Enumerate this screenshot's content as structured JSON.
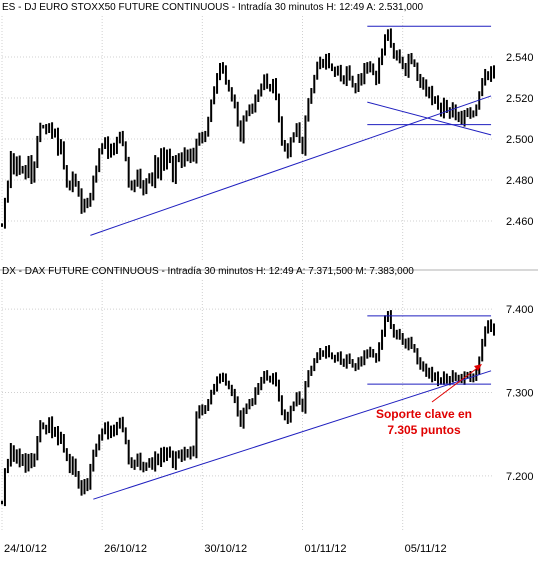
{
  "chart_data": [
    {
      "type": "line",
      "subtype": "bar-ohlc",
      "title": "ES - DJ EURO STOXX50 FUTURE CONTINUOUS - Intradía 30 minutos  H: 12:49  A: 2.531,000",
      "yticks": [
        2.46,
        2.48,
        2.5,
        2.52,
        2.54
      ],
      "ytick_labels": [
        "2.460",
        "2.480",
        "2.500",
        "2.520",
        "2.540"
      ],
      "ylim": [
        2.44,
        2.56
      ],
      "grid": true,
      "price_path": [
        [
          0,
          2.458
        ],
        [
          1,
          2.47
        ],
        [
          2,
          2.478
        ],
        [
          3,
          2.492
        ],
        [
          4,
          2.484
        ],
        [
          5,
          2.49
        ],
        [
          6,
          2.484
        ],
        [
          7,
          2.486
        ],
        [
          8,
          2.482
        ],
        [
          9,
          2.49
        ],
        [
          10,
          2.48
        ],
        [
          11,
          2.488
        ],
        [
          12,
          2.5
        ],
        [
          13,
          2.506
        ],
        [
          14,
          2.506
        ],
        [
          15,
          2.504
        ],
        [
          16,
          2.506
        ],
        [
          17,
          2.502
        ],
        [
          18,
          2.504
        ],
        [
          19,
          2.494
        ],
        [
          20,
          2.498
        ],
        [
          21,
          2.486
        ],
        [
          22,
          2.478
        ],
        [
          23,
          2.476
        ],
        [
          24,
          2.482
        ],
        [
          25,
          2.478
        ],
        [
          26,
          2.474
        ],
        [
          27,
          2.465
        ],
        [
          28,
          2.47
        ],
        [
          29,
          2.468
        ],
        [
          30,
          2.472
        ],
        [
          31,
          2.48
        ],
        [
          32,
          2.486
        ],
        [
          33,
          2.494
        ],
        [
          34,
          2.496
        ],
        [
          35,
          2.5
        ],
        [
          36,
          2.492
        ],
        [
          37,
          2.496
        ],
        [
          38,
          2.494
        ],
        [
          39,
          2.5
        ],
        [
          40,
          2.502
        ],
        [
          41,
          2.498
        ],
        [
          42,
          2.49
        ],
        [
          43,
          2.478
        ],
        [
          44,
          2.476
        ],
        [
          45,
          2.478
        ],
        [
          46,
          2.484
        ],
        [
          47,
          2.478
        ],
        [
          48,
          2.474
        ],
        [
          49,
          2.48
        ],
        [
          50,
          2.482
        ],
        [
          51,
          2.478
        ],
        [
          52,
          2.49
        ],
        [
          53,
          2.482
        ],
        [
          54,
          2.494
        ],
        [
          55,
          2.486
        ],
        [
          56,
          2.494
        ],
        [
          57,
          2.49
        ],
        [
          58,
          2.48
        ],
        [
          59,
          2.49
        ],
        [
          60,
          2.492
        ],
        [
          61,
          2.488
        ],
        [
          62,
          2.494
        ],
        [
          63,
          2.49
        ],
        [
          64,
          2.494
        ],
        [
          65,
          2.49
        ],
        [
          66,
          2.498
        ],
        [
          67,
          2.502
        ],
        [
          68,
          2.5
        ],
        [
          69,
          2.502
        ],
        [
          70,
          2.51
        ],
        [
          71,
          2.518
        ],
        [
          72,
          2.524
        ],
        [
          73,
          2.53
        ],
        [
          74,
          2.536
        ],
        [
          75,
          2.534
        ],
        [
          76,
          2.528
        ],
        [
          77,
          2.524
        ],
        [
          78,
          2.52
        ],
        [
          79,
          2.516
        ],
        [
          80,
          2.508
        ],
        [
          81,
          2.5
        ],
        [
          82,
          2.51
        ],
        [
          83,
          2.512
        ],
        [
          84,
          2.516
        ],
        [
          85,
          2.514
        ],
        [
          86,
          2.52
        ],
        [
          87,
          2.522
        ],
        [
          88,
          2.526
        ],
        [
          89,
          2.53
        ],
        [
          90,
          2.526
        ],
        [
          91,
          2.524
        ],
        [
          92,
          2.528
        ],
        [
          93,
          2.52
        ],
        [
          94,
          2.51
        ],
        [
          95,
          2.498
        ],
        [
          96,
          2.496
        ],
        [
          97,
          2.492
        ],
        [
          98,
          2.5
        ],
        [
          99,
          2.502
        ],
        [
          100,
          2.506
        ],
        [
          101,
          2.5
        ],
        [
          102,
          2.494
        ],
        [
          103,
          2.51
        ],
        [
          104,
          2.518
        ],
        [
          105,
          2.524
        ],
        [
          106,
          2.53
        ],
        [
          107,
          2.536
        ],
        [
          108,
          2.538
        ],
        [
          109,
          2.536
        ],
        [
          110,
          2.54
        ],
        [
          111,
          2.536
        ],
        [
          112,
          2.534
        ],
        [
          113,
          2.532
        ],
        [
          114,
          2.534
        ],
        [
          115,
          2.53
        ],
        [
          116,
          2.528
        ],
        [
          117,
          2.534
        ],
        [
          118,
          2.53
        ],
        [
          119,
          2.526
        ],
        [
          120,
          2.524
        ],
        [
          121,
          2.53
        ],
        [
          122,
          2.528
        ],
        [
          123,
          2.536
        ],
        [
          124,
          2.534
        ],
        [
          125,
          2.536
        ],
        [
          126,
          2.532
        ],
        [
          127,
          2.528
        ],
        [
          128,
          2.538
        ],
        [
          129,
          2.542
        ],
        [
          130,
          2.55
        ],
        [
          131,
          2.552
        ],
        [
          132,
          2.546
        ],
        [
          133,
          2.54
        ],
        [
          134,
          2.542
        ],
        [
          135,
          2.538
        ],
        [
          136,
          2.536
        ],
        [
          137,
          2.532
        ],
        [
          138,
          2.54
        ],
        [
          139,
          2.538
        ],
        [
          140,
          2.536
        ],
        [
          141,
          2.53
        ],
        [
          142,
          2.526
        ],
        [
          143,
          2.528
        ],
        [
          144,
          2.522
        ],
        [
          145,
          2.524
        ],
        [
          146,
          2.518
        ],
        [
          147,
          2.52
        ],
        [
          148,
          2.516
        ],
        [
          149,
          2.512
        ],
        [
          150,
          2.518
        ],
        [
          151,
          2.514
        ],
        [
          152,
          2.512
        ],
        [
          153,
          2.516
        ],
        [
          154,
          2.51
        ],
        [
          155,
          2.512
        ],
        [
          156,
          2.508
        ],
        [
          157,
          2.512
        ],
        [
          158,
          2.514
        ],
        [
          159,
          2.512
        ],
        [
          160,
          2.512
        ],
        [
          161,
          2.516
        ],
        [
          162,
          2.522
        ],
        [
          163,
          2.528
        ],
        [
          164,
          2.532
        ],
        [
          165,
          2.53
        ],
        [
          166,
          2.534
        ],
        [
          167,
          2.531
        ]
      ],
      "lines": [
        {
          "role": "trendline",
          "from": [
            30,
            2.453
          ],
          "to": [
            166,
            2.521
          ]
        },
        {
          "role": "trendline",
          "from": [
            124,
            2.518
          ],
          "to": [
            166,
            2.502
          ]
        },
        {
          "role": "level",
          "from": [
            124,
            2.555
          ],
          "to": [
            166,
            2.555
          ]
        },
        {
          "role": "level",
          "from": [
            124,
            2.507
          ],
          "to": [
            166,
            2.507
          ]
        }
      ]
    },
    {
      "type": "line",
      "subtype": "bar-ohlc",
      "title": "DX - DAX FUTURE CONTINUOUS - Intradía 30 minutos  H: 12:49  A: 7.371,500  M: 7.383,000",
      "yticks": [
        7.2,
        7.3,
        7.4
      ],
      "ytick_labels": [
        "7.200",
        "7.300",
        "7.400"
      ],
      "xlabels": [
        "24/10/12",
        "26/10/12",
        "30/10/12",
        "01/11/12",
        "05/11/12"
      ],
      "xtick_index": [
        0,
        34,
        68,
        102,
        136
      ],
      "ylim": [
        7.135,
        7.435
      ],
      "grid": true,
      "annotation": "Soporte clave en 7.305 puntos",
      "price_path": [
        [
          0,
          7.168
        ],
        [
          1,
          7.206
        ],
        [
          2,
          7.216
        ],
        [
          3,
          7.234
        ],
        [
          4,
          7.22
        ],
        [
          5,
          7.228
        ],
        [
          6,
          7.214
        ],
        [
          7,
          7.224
        ],
        [
          8,
          7.208
        ],
        [
          9,
          7.222
        ],
        [
          10,
          7.214
        ],
        [
          11,
          7.224
        ],
        [
          12,
          7.244
        ],
        [
          13,
          7.262
        ],
        [
          14,
          7.258
        ],
        [
          15,
          7.254
        ],
        [
          16,
          7.266
        ],
        [
          17,
          7.25
        ],
        [
          18,
          7.256
        ],
        [
          19,
          7.242
        ],
        [
          20,
          7.248
        ],
        [
          21,
          7.23
        ],
        [
          22,
          7.222
        ],
        [
          23,
          7.206
        ],
        [
          24,
          7.218
        ],
        [
          25,
          7.202
        ],
        [
          26,
          7.19
        ],
        [
          27,
          7.18
        ],
        [
          28,
          7.194
        ],
        [
          29,
          7.186
        ],
        [
          30,
          7.21
        ],
        [
          31,
          7.226
        ],
        [
          32,
          7.236
        ],
        [
          33,
          7.246
        ],
        [
          34,
          7.252
        ],
        [
          35,
          7.262
        ],
        [
          36,
          7.248
        ],
        [
          37,
          7.256
        ],
        [
          38,
          7.252
        ],
        [
          39,
          7.262
        ],
        [
          40,
          7.266
        ],
        [
          41,
          7.256
        ],
        [
          42,
          7.24
        ],
        [
          43,
          7.218
        ],
        [
          44,
          7.212
        ],
        [
          45,
          7.214
        ],
        [
          46,
          7.224
        ],
        [
          47,
          7.212
        ],
        [
          48,
          7.208
        ],
        [
          49,
          7.214
        ],
        [
          50,
          7.218
        ],
        [
          51,
          7.21
        ],
        [
          52,
          7.224
        ],
        [
          53,
          7.216
        ],
        [
          54,
          7.23
        ],
        [
          55,
          7.22
        ],
        [
          56,
          7.232
        ],
        [
          57,
          7.226
        ],
        [
          58,
          7.212
        ],
        [
          59,
          7.224
        ],
        [
          60,
          7.228
        ],
        [
          61,
          7.222
        ],
        [
          62,
          7.23
        ],
        [
          63,
          7.224
        ],
        [
          64,
          7.232
        ],
        [
          65,
          7.226
        ],
        [
          66,
          7.272
        ],
        [
          67,
          7.282
        ],
        [
          68,
          7.278
        ],
        [
          69,
          7.28
        ],
        [
          70,
          7.29
        ],
        [
          71,
          7.3
        ],
        [
          72,
          7.306
        ],
        [
          73,
          7.314
        ],
        [
          74,
          7.32
        ],
        [
          75,
          7.318
        ],
        [
          76,
          7.312
        ],
        [
          77,
          7.306
        ],
        [
          78,
          7.3
        ],
        [
          79,
          7.29
        ],
        [
          80,
          7.276
        ],
        [
          81,
          7.262
        ],
        [
          82,
          7.278
        ],
        [
          83,
          7.282
        ],
        [
          84,
          7.29
        ],
        [
          85,
          7.288
        ],
        [
          86,
          7.302
        ],
        [
          87,
          7.306
        ],
        [
          88,
          7.316
        ],
        [
          89,
          7.322
        ],
        [
          90,
          7.318
        ],
        [
          91,
          7.314
        ],
        [
          92,
          7.32
        ],
        [
          93,
          7.31
        ],
        [
          94,
          7.294
        ],
        [
          95,
          7.276
        ],
        [
          96,
          7.272
        ],
        [
          97,
          7.266
        ],
        [
          98,
          7.282
        ],
        [
          99,
          7.286
        ],
        [
          100,
          7.296
        ],
        [
          101,
          7.29
        ],
        [
          102,
          7.28
        ],
        [
          103,
          7.31
        ],
        [
          104,
          7.322
        ],
        [
          105,
          7.33
        ],
        [
          106,
          7.338
        ],
        [
          107,
          7.344
        ],
        [
          108,
          7.348
        ],
        [
          109,
          7.346
        ],
        [
          110,
          7.352
        ],
        [
          111,
          7.346
        ],
        [
          112,
          7.342
        ],
        [
          113,
          7.34
        ],
        [
          114,
          7.344
        ],
        [
          115,
          7.338
        ],
        [
          116,
          7.334
        ],
        [
          117,
          7.342
        ],
        [
          118,
          7.338
        ],
        [
          119,
          7.332
        ],
        [
          120,
          7.33
        ],
        [
          121,
          7.338
        ],
        [
          122,
          7.336
        ],
        [
          123,
          7.348
        ],
        [
          124,
          7.346
        ],
        [
          125,
          7.35
        ],
        [
          126,
          7.344
        ],
        [
          127,
          7.34
        ],
        [
          128,
          7.356
        ],
        [
          129,
          7.37
        ],
        [
          130,
          7.39
        ],
        [
          131,
          7.394
        ],
        [
          132,
          7.38
        ],
        [
          133,
          7.368
        ],
        [
          134,
          7.372
        ],
        [
          135,
          7.366
        ],
        [
          136,
          7.362
        ],
        [
          137,
          7.356
        ],
        [
          138,
          7.362
        ],
        [
          139,
          7.356
        ],
        [
          140,
          7.35
        ],
        [
          141,
          7.338
        ],
        [
          142,
          7.33
        ],
        [
          143,
          7.332
        ],
        [
          144,
          7.322
        ],
        [
          145,
          7.326
        ],
        [
          146,
          7.316
        ],
        [
          147,
          7.322
        ],
        [
          148,
          7.312
        ],
        [
          149,
          7.314
        ],
        [
          150,
          7.32
        ],
        [
          151,
          7.314
        ],
        [
          152,
          7.316
        ],
        [
          153,
          7.322
        ],
        [
          154,
          7.316
        ],
        [
          155,
          7.318
        ],
        [
          156,
          7.314
        ],
        [
          157,
          7.32
        ],
        [
          158,
          7.322
        ],
        [
          159,
          7.318
        ],
        [
          160,
          7.316
        ],
        [
          161,
          7.326
        ],
        [
          162,
          7.34
        ],
        [
          163,
          7.36
        ],
        [
          164,
          7.374
        ],
        [
          165,
          7.384
        ],
        [
          166,
          7.378
        ],
        [
          167,
          7.372
        ]
      ],
      "lines": [
        {
          "role": "trendline",
          "from": [
            31,
            7.172
          ],
          "to": [
            166,
            7.326
          ]
        },
        {
          "role": "level",
          "from": [
            124,
            7.392
          ],
          "to": [
            166,
            7.392
          ]
        },
        {
          "role": "level",
          "from": [
            124,
            7.31
          ],
          "to": [
            166,
            7.31
          ]
        }
      ]
    }
  ],
  "colors": {
    "price": "#000000",
    "trendline": "#1f1fbf",
    "grid": "#d0d0d0",
    "annotation": "#e00000",
    "frame": "#b0b0b0"
  }
}
